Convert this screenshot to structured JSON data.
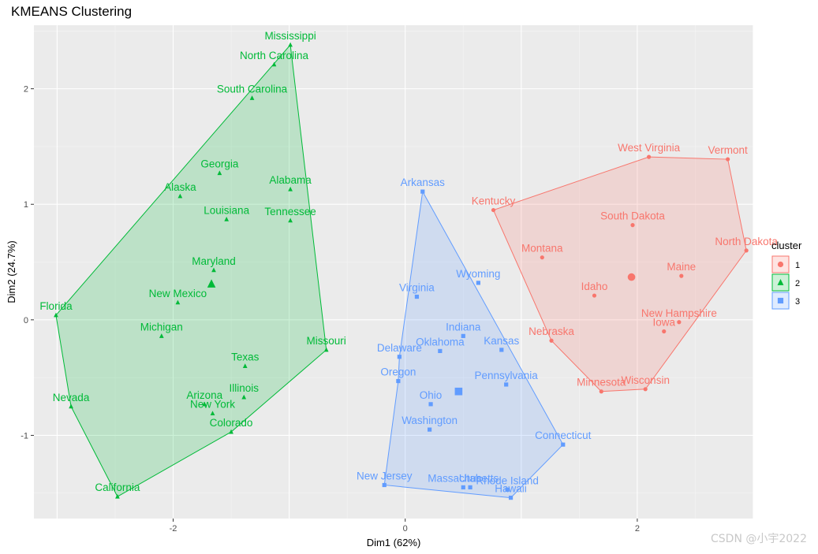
{
  "title": "KMEANS Clustering",
  "watermark": "CSDN @小宇2022",
  "chart_data": {
    "type": "scatter",
    "title": "KMEANS Clustering",
    "xlabel": "Dim1 (62%)",
    "ylabel": "Dim2 (24.7%)",
    "xlim": [
      -3.2,
      3.0
    ],
    "ylim": [
      -1.72,
      2.55
    ],
    "xticks": [
      -2,
      0,
      2
    ],
    "yticks": [
      -1,
      0,
      1,
      2
    ],
    "grid": true,
    "legend": {
      "title": "cluster",
      "position": "right",
      "entries": [
        "1",
        "2",
        "3"
      ]
    },
    "colors": {
      "1": "#f8766d",
      "2": "#00ba38",
      "3": "#619cff"
    },
    "centroids": [
      {
        "cluster": "1",
        "x": 1.95,
        "y": 0.37
      },
      {
        "cluster": "2",
        "x": -1.67,
        "y": 0.31
      },
      {
        "cluster": "3",
        "x": 0.46,
        "y": -0.62
      }
    ],
    "hulls": {
      "1": [
        "Kentucky",
        "West Virginia",
        "Vermont",
        "North Dakota",
        "Wisconsin",
        "Minnesota",
        "Nebraska"
      ],
      "2": [
        "Mississippi",
        "Missouri",
        "Colorado",
        "California",
        "Nevada",
        "Florida"
      ],
      "3": [
        "Arkansas",
        "Connecticut",
        "Hawaii",
        "New Jersey",
        "Oregon",
        "Delaware"
      ]
    },
    "points": [
      {
        "state": "Vermont",
        "cluster": "1",
        "x": 2.78,
        "y": 1.39
      },
      {
        "state": "West Virginia",
        "cluster": "1",
        "x": 2.1,
        "y": 1.41
      },
      {
        "state": "Kentucky",
        "cluster": "1",
        "x": 0.76,
        "y": 0.95
      },
      {
        "state": "South Dakota",
        "cluster": "1",
        "x": 1.96,
        "y": 0.82
      },
      {
        "state": "North Dakota",
        "cluster": "1",
        "x": 2.94,
        "y": 0.6
      },
      {
        "state": "Montana",
        "cluster": "1",
        "x": 1.18,
        "y": 0.54
      },
      {
        "state": "Maine",
        "cluster": "1",
        "x": 2.38,
        "y": 0.38
      },
      {
        "state": "Idaho",
        "cluster": "1",
        "x": 1.63,
        "y": 0.21
      },
      {
        "state": "New Hampshire",
        "cluster": "1",
        "x": 2.36,
        "y": -0.02
      },
      {
        "state": "Iowa",
        "cluster": "1",
        "x": 2.23,
        "y": -0.1
      },
      {
        "state": "Nebraska",
        "cluster": "1",
        "x": 1.26,
        "y": -0.18
      },
      {
        "state": "Minnesota",
        "cluster": "1",
        "x": 1.69,
        "y": -0.62
      },
      {
        "state": "Wisconsin",
        "cluster": "1",
        "x": 2.07,
        "y": -0.6
      },
      {
        "state": "Mississippi",
        "cluster": "2",
        "x": -0.99,
        "y": 2.38
      },
      {
        "state": "North Carolina",
        "cluster": "2",
        "x": -1.13,
        "y": 2.21
      },
      {
        "state": "South Carolina",
        "cluster": "2",
        "x": -1.32,
        "y": 1.92
      },
      {
        "state": "Georgia",
        "cluster": "2",
        "x": -1.6,
        "y": 1.27
      },
      {
        "state": "Alaska",
        "cluster": "2",
        "x": -1.94,
        "y": 1.07
      },
      {
        "state": "Alabama",
        "cluster": "2",
        "x": -0.99,
        "y": 1.13
      },
      {
        "state": "Louisiana",
        "cluster": "2",
        "x": -1.54,
        "y": 0.87
      },
      {
        "state": "Tennessee",
        "cluster": "2",
        "x": -0.99,
        "y": 0.86
      },
      {
        "state": "Maryland",
        "cluster": "2",
        "x": -1.65,
        "y": 0.43
      },
      {
        "state": "New Mexico",
        "cluster": "2",
        "x": -1.96,
        "y": 0.15
      },
      {
        "state": "Florida",
        "cluster": "2",
        "x": -3.01,
        "y": 0.04
      },
      {
        "state": "Michigan",
        "cluster": "2",
        "x": -2.1,
        "y": -0.14
      },
      {
        "state": "Missouri",
        "cluster": "2",
        "x": -0.68,
        "y": -0.26
      },
      {
        "state": "Texas",
        "cluster": "2",
        "x": -1.38,
        "y": -0.4
      },
      {
        "state": "Illinois",
        "cluster": "2",
        "x": -1.39,
        "y": -0.67
      },
      {
        "state": "Arizona",
        "cluster": "2",
        "x": -1.73,
        "y": -0.73
      },
      {
        "state": "New York",
        "cluster": "2",
        "x": -1.66,
        "y": -0.81
      },
      {
        "state": "Colorado",
        "cluster": "2",
        "x": -1.5,
        "y": -0.97
      },
      {
        "state": "Nevada",
        "cluster": "2",
        "x": -2.88,
        "y": -0.75
      },
      {
        "state": "California",
        "cluster": "2",
        "x": -2.48,
        "y": -1.53
      },
      {
        "state": "Arkansas",
        "cluster": "3",
        "x": 0.15,
        "y": 1.11
      },
      {
        "state": "Virginia",
        "cluster": "3",
        "x": 0.1,
        "y": 0.2
      },
      {
        "state": "Wyoming",
        "cluster": "3",
        "x": 0.63,
        "y": 0.32
      },
      {
        "state": "Indiana",
        "cluster": "3",
        "x": 0.5,
        "y": -0.14
      },
      {
        "state": "Kansas",
        "cluster": "3",
        "x": 0.83,
        "y": -0.26
      },
      {
        "state": "Oklahoma",
        "cluster": "3",
        "x": 0.3,
        "y": -0.27
      },
      {
        "state": "Delaware",
        "cluster": "3",
        "x": -0.05,
        "y": -0.32
      },
      {
        "state": "Oregon",
        "cluster": "3",
        "x": -0.06,
        "y": -0.53
      },
      {
        "state": "Pennsylvania",
        "cluster": "3",
        "x": 0.87,
        "y": -0.56
      },
      {
        "state": "Ohio",
        "cluster": "3",
        "x": 0.22,
        "y": -0.73
      },
      {
        "state": "Washington",
        "cluster": "3",
        "x": 0.21,
        "y": -0.95
      },
      {
        "state": "Connecticut",
        "cluster": "3",
        "x": 1.36,
        "y": -1.08
      },
      {
        "state": "New Jersey",
        "cluster": "3",
        "x": -0.18,
        "y": -1.43
      },
      {
        "state": "Massachusetts",
        "cluster": "3",
        "x": 0.5,
        "y": -1.45
      },
      {
        "state": "Utah",
        "cluster": "3",
        "x": 0.56,
        "y": -1.45
      },
      {
        "state": "Rhode Island",
        "cluster": "3",
        "x": 0.88,
        "y": -1.47
      },
      {
        "state": "Hawaii",
        "cluster": "3",
        "x": 0.91,
        "y": -1.54
      }
    ]
  }
}
